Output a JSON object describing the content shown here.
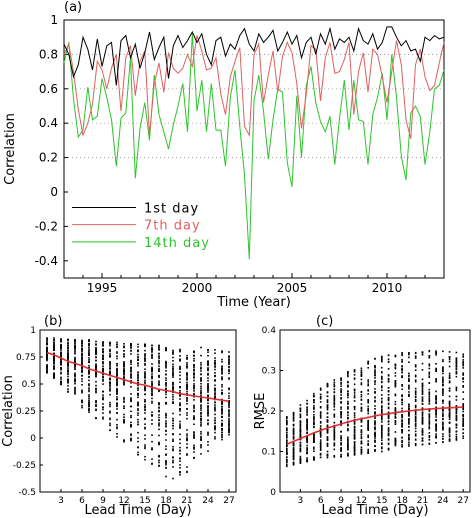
{
  "chart_data": [
    {
      "panel": "(a)",
      "type": "line",
      "xlabel": "Time (Year)",
      "ylabel": "Correlation",
      "xlim": [
        1993,
        2013
      ],
      "ylim": [
        -0.5,
        1.0
      ],
      "xticks": [
        "1995",
        "2000",
        "2005",
        "2010"
      ],
      "yticks": [
        "1",
        "0.8",
        "0.6",
        "0.4",
        "0.2",
        "0",
        "-0.2",
        "-0.4"
      ],
      "grid": "dotted horizontal lines at 0.2, 0.4, 0.6, 0.8",
      "legend_position": "lower-left",
      "x_start": 1993,
      "x_step": 0.25,
      "series": [
        {
          "name": "1st day",
          "color": "#000000",
          "values": [
            0.86,
            0.8,
            0.67,
            0.74,
            0.9,
            0.83,
            0.71,
            0.89,
            0.73,
            0.85,
            0.87,
            0.62,
            0.88,
            0.91,
            0.78,
            0.86,
            0.72,
            0.81,
            0.93,
            0.77,
            0.84,
            0.9,
            0.66,
            0.85,
            0.91,
            0.84,
            0.88,
            0.93,
            0.87,
            0.92,
            0.8,
            0.74,
            0.88,
            0.9,
            0.79,
            0.86,
            0.83,
            0.91,
            0.95,
            0.86,
            0.82,
            0.92,
            0.87,
            0.9,
            0.94,
            0.82,
            0.87,
            0.93,
            0.86,
            0.91,
            0.78,
            0.87,
            0.9,
            0.8,
            0.92,
            0.86,
            0.95,
            0.83,
            0.89,
            0.87,
            0.9,
            0.82,
            0.95,
            0.88,
            0.86,
            0.92,
            0.83,
            0.87,
            0.96,
            0.96,
            0.9,
            0.85,
            0.88,
            0.82,
            0.83,
            0.76,
            0.9,
            0.88,
            0.91,
            0.89,
            0.9
          ]
        },
        {
          "name": "7th day",
          "color": "#e06060",
          "values": [
            0.8,
            0.86,
            0.7,
            0.48,
            0.33,
            0.4,
            0.51,
            0.76,
            0.71,
            0.6,
            0.72,
            0.8,
            0.47,
            0.78,
            0.85,
            0.56,
            0.76,
            0.82,
            0.33,
            0.63,
            0.75,
            0.58,
            0.81,
            0.72,
            0.69,
            0.72,
            0.8,
            0.73,
            0.91,
            0.82,
            0.71,
            0.72,
            0.78,
            0.57,
            0.45,
            0.67,
            0.76,
            0.84,
            0.38,
            0.33,
            0.8,
            0.86,
            0.52,
            0.68,
            0.82,
            0.58,
            0.79,
            0.87,
            0.81,
            0.63,
            0.37,
            0.57,
            0.85,
            0.83,
            0.53,
            0.78,
            0.87,
            0.69,
            0.7,
            0.77,
            0.87,
            0.45,
            0.7,
            0.81,
            0.58,
            0.83,
            0.8,
            0.67,
            0.52,
            0.7,
            0.88,
            0.74,
            0.42,
            0.31,
            0.74,
            0.83,
            0.67,
            0.59,
            0.62,
            0.75,
            0.87
          ]
        },
        {
          "name": "14th day",
          "color": "#2ec42e",
          "values": [
            0.75,
            0.87,
            0.54,
            0.32,
            0.36,
            0.61,
            0.42,
            0.44,
            0.66,
            0.55,
            0.42,
            0.15,
            0.43,
            0.46,
            0.78,
            0.08,
            0.37,
            0.52,
            0.3,
            0.68,
            0.45,
            0.35,
            0.25,
            0.39,
            0.5,
            0.63,
            0.35,
            0.92,
            0.47,
            0.65,
            0.35,
            0.63,
            0.36,
            0.36,
            0.15,
            0.55,
            0.71,
            0.38,
            0.1,
            -0.39,
            0.53,
            0.68,
            0.47,
            0.19,
            0.42,
            0.6,
            0.58,
            0.17,
            0.03,
            0.56,
            0.2,
            0.62,
            0.73,
            0.52,
            0.41,
            0.35,
            0.44,
            0.16,
            0.43,
            0.65,
            0.36,
            0.65,
            0.42,
            0.41,
            0.16,
            0.45,
            0.55,
            0.69,
            0.42,
            0.8,
            0.55,
            0.21,
            0.07,
            0.46,
            0.5,
            0.44,
            0.16,
            0.35,
            0.6,
            0.62,
            0.71
          ]
        }
      ]
    },
    {
      "panel": "(b)",
      "type": "scatter",
      "xlabel": "Lead Time (Day)",
      "ylabel": "Correlation",
      "xlim": [
        0,
        28
      ],
      "ylim": [
        -0.5,
        1.0
      ],
      "xticks": [
        "3",
        "6",
        "9",
        "12",
        "15",
        "18",
        "21",
        "24",
        "27"
      ],
      "yticks": [
        "1",
        "0.75",
        "0.5",
        "0.25",
        "0",
        "-0.25",
        "-0.5"
      ],
      "mean_line_color": "#e03030",
      "lead_days": [
        1,
        2,
        3,
        4,
        5,
        6,
        7,
        8,
        9,
        10,
        11,
        12,
        13,
        14,
        15,
        16,
        17,
        18,
        19,
        20,
        21,
        22,
        23,
        24,
        25,
        26,
        27
      ],
      "mean": [
        0.79,
        0.77,
        0.74,
        0.71,
        0.69,
        0.67,
        0.64,
        0.62,
        0.6,
        0.58,
        0.56,
        0.54,
        0.52,
        0.5,
        0.49,
        0.47,
        0.45,
        0.44,
        0.43,
        0.41,
        0.4,
        0.39,
        0.38,
        0.37,
        0.36,
        0.35,
        0.34
      ],
      "spread_upper": [
        0.93,
        0.93,
        0.93,
        0.92,
        0.92,
        0.91,
        0.91,
        0.9,
        0.9,
        0.89,
        0.89,
        0.88,
        0.88,
        0.87,
        0.87,
        0.86,
        0.86,
        0.86,
        0.85,
        0.85,
        0.84,
        0.84,
        0.84,
        0.83,
        0.83,
        0.83,
        0.82
      ],
      "spread_lower": [
        0.6,
        0.55,
        0.48,
        0.41,
        0.35,
        0.28,
        0.22,
        0.16,
        0.1,
        0.05,
        -0.01,
        -0.06,
        -0.12,
        -0.17,
        -0.22,
        -0.27,
        -0.31,
        -0.36,
        -0.38,
        -0.36,
        -0.32,
        -0.26,
        -0.2,
        -0.14,
        -0.08,
        -0.02,
        0.03
      ]
    },
    {
      "panel": "(c)",
      "type": "scatter",
      "xlabel": "Lead Time (Day)",
      "ylabel": "RMSE",
      "xlim": [
        0,
        28
      ],
      "ylim": [
        0,
        0.4
      ],
      "xticks": [
        "3",
        "6",
        "9",
        "12",
        "15",
        "18",
        "21",
        "24",
        "27"
      ],
      "yticks": [
        "0.4",
        "0.3",
        "0.2",
        "0.1",
        "0"
      ],
      "mean_line_color": "#e03030",
      "lead_days": [
        1,
        2,
        3,
        4,
        5,
        6,
        7,
        8,
        9,
        10,
        11,
        12,
        13,
        14,
        15,
        16,
        17,
        18,
        19,
        20,
        21,
        22,
        23,
        24,
        25,
        26,
        27
      ],
      "mean": [
        0.118,
        0.125,
        0.132,
        0.139,
        0.146,
        0.152,
        0.158,
        0.163,
        0.168,
        0.173,
        0.177,
        0.181,
        0.184,
        0.188,
        0.191,
        0.193,
        0.196,
        0.198,
        0.2,
        0.202,
        0.204,
        0.205,
        0.206,
        0.207,
        0.208,
        0.209,
        0.21
      ],
      "spread_upper": [
        0.19,
        0.2,
        0.215,
        0.23,
        0.245,
        0.26,
        0.27,
        0.28,
        0.29,
        0.3,
        0.31,
        0.318,
        0.325,
        0.33,
        0.335,
        0.34,
        0.343,
        0.345,
        0.347,
        0.348,
        0.349,
        0.35,
        0.35,
        0.349,
        0.347,
        0.345,
        0.34
      ],
      "spread_lower": [
        0.06,
        0.065,
        0.07,
        0.072,
        0.075,
        0.078,
        0.08,
        0.082,
        0.085,
        0.088,
        0.09,
        0.092,
        0.095,
        0.098,
        0.1,
        0.102,
        0.105,
        0.108,
        0.11,
        0.112,
        0.115,
        0.118,
        0.12,
        0.122,
        0.125,
        0.128,
        0.13
      ]
    }
  ],
  "panel_labels": {
    "a": "(a)",
    "b": "(b)",
    "c": "(c)"
  }
}
